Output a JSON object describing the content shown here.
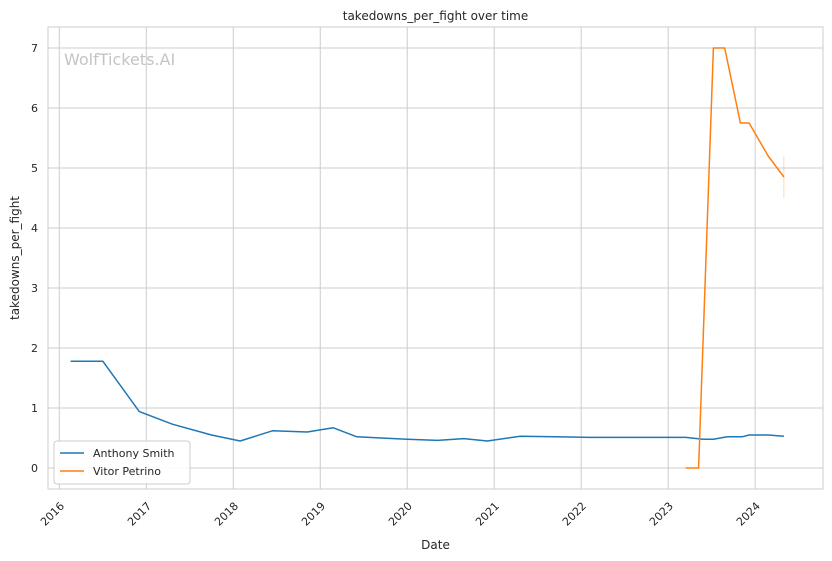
{
  "chart_data": {
    "type": "line",
    "title": "takedowns_per_fight over time",
    "xlabel": "Date",
    "ylabel": "takedowns_per_fight",
    "watermark": "WolfTickets.AI",
    "xlim": [
      2015.87,
      2024.78
    ],
    "ylim": [
      -0.35,
      7.35
    ],
    "x_ticks": [
      2016,
      2017,
      2018,
      2019,
      2020,
      2021,
      2022,
      2023,
      2024
    ],
    "y_ticks": [
      0,
      1,
      2,
      3,
      4,
      5,
      6,
      7
    ],
    "grid": true,
    "legend_position": "lower-left",
    "series": [
      {
        "name": "Anthony Smith",
        "color": "#1f77b4",
        "x": [
          2016.13,
          2016.5,
          2016.92,
          2017.3,
          2017.75,
          2018.08,
          2018.45,
          2018.85,
          2019.15,
          2019.42,
          2019.7,
          2020.0,
          2020.35,
          2020.65,
          2020.92,
          2021.3,
          2021.7,
          2022.1,
          2022.5,
          2022.9,
          2023.2,
          2023.4,
          2023.52,
          2023.68,
          2023.85,
          2023.93,
          2024.15,
          2024.33
        ],
        "y": [
          1.78,
          1.78,
          0.94,
          0.73,
          0.55,
          0.45,
          0.62,
          0.6,
          0.67,
          0.52,
          0.5,
          0.48,
          0.46,
          0.49,
          0.45,
          0.53,
          0.52,
          0.51,
          0.51,
          0.51,
          0.51,
          0.48,
          0.48,
          0.52,
          0.52,
          0.55,
          0.55,
          0.53
        ]
      },
      {
        "name": "Vitor Petrino",
        "color": "#ff7f0e",
        "x": [
          2023.2,
          2023.35,
          2023.52,
          2023.65,
          2023.83,
          2023.93,
          2024.15,
          2024.33
        ],
        "y": [
          0.0,
          0.0,
          7.0,
          7.0,
          5.75,
          5.75,
          5.2,
          4.85
        ]
      }
    ]
  }
}
